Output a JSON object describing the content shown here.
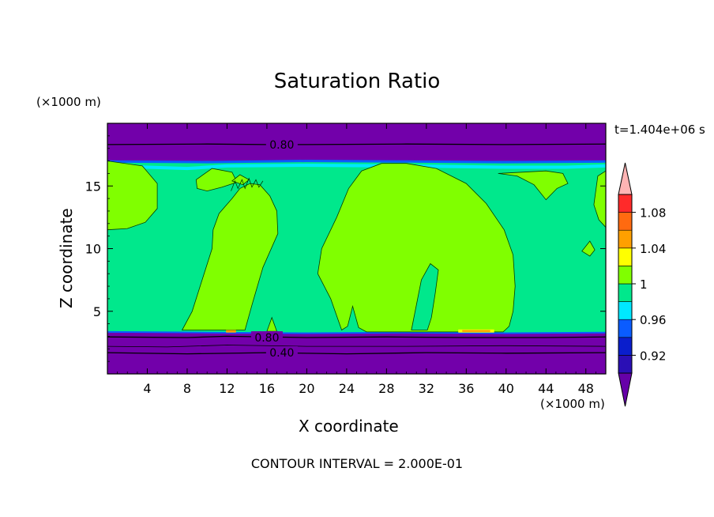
{
  "chart_data": {
    "type": "heatmap",
    "title": "Saturation Ratio",
    "xlabel": "X coordinate",
    "ylabel": "Z coordinate",
    "x_unit": "(×1000 m)",
    "y_unit": "(×1000 m)",
    "time_label": "t=1.404e+06 s",
    "footer": "CONTOUR INTERVAL = 2.000E-01",
    "xlim": [
      0,
      50
    ],
    "ylim": [
      0,
      20
    ],
    "x_ticks": [
      4,
      8,
      12,
      16,
      20,
      24,
      28,
      32,
      36,
      40,
      44,
      48
    ],
    "y_ticks": [
      5,
      10,
      15
    ],
    "contour_labels": [
      {
        "text": "0.80",
        "x": 17.5,
        "z": 18.3
      },
      {
        "text": "0.80",
        "x": 16.0,
        "z": 2.9
      },
      {
        "text": "0.40",
        "x": 17.5,
        "z": 1.7
      }
    ],
    "colorbar": {
      "levels": [
        0.92,
        0.96,
        1,
        1.04,
        1.08
      ],
      "colors": [
        "#6600a8",
        "#2a0fb5",
        "#0a1ecc",
        "#0a5cff",
        "#00e8ff",
        "#00e88c",
        "#80ff00",
        "#ffff00",
        "#ffa000",
        "#ff6a10",
        "#ff2a2a",
        "#ffb4b4"
      ]
    },
    "fields": {
      "low_value_color": "#7200aa",
      "background_color": "#00e88c",
      "high_region_color": "#80ff00",
      "peak_color": "#ffa000"
    }
  }
}
